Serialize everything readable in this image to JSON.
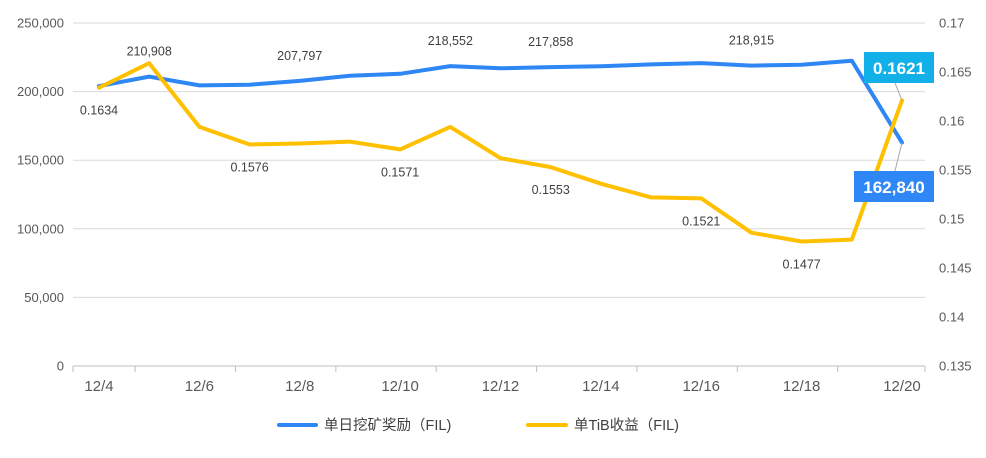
{
  "chart_data": {
    "type": "line",
    "x": [
      "12/4",
      "12/5",
      "12/6",
      "12/7",
      "12/8",
      "12/9",
      "12/10",
      "12/11",
      "12/12",
      "12/13",
      "12/14",
      "12/15",
      "12/16",
      "12/17",
      "12/18",
      "12/19",
      "12/20"
    ],
    "x_tick_labels": [
      "12/4",
      "12/6",
      "12/8",
      "12/10",
      "12/12",
      "12/14",
      "12/16",
      "12/18",
      "12/20"
    ],
    "y_left": {
      "ylim": [
        0,
        250000
      ],
      "ticks": [
        "0",
        "50,000",
        "100,000",
        "150,000",
        "200,000",
        "250,000"
      ]
    },
    "y_right": {
      "ylim": [
        0.135,
        0.17
      ],
      "ticks": [
        "0.135",
        "0.14",
        "0.145",
        "0.15",
        "0.155",
        "0.16",
        "0.165",
        "0.17"
      ]
    },
    "grid": "horizontal",
    "legend_position": "bottom",
    "series": [
      {
        "name": "单日挖矿奖励（FIL)",
        "axis": "left",
        "color": "#2f86f5",
        "values": [
          204000,
          210908,
          204500,
          205000,
          207797,
          211500,
          213000,
          218552,
          217000,
          217858,
          218500,
          219800,
          220800,
          218915,
          219500,
          222500,
          162840
        ],
        "labels": [
          null,
          "210,908",
          null,
          null,
          "207,797",
          null,
          null,
          "218,552",
          null,
          "217,858",
          null,
          null,
          null,
          "218,915",
          null,
          null,
          "162,840"
        ]
      },
      {
        "name": "单TiB收益（FIL)",
        "axis": "right",
        "color": "#ffc000",
        "values": [
          0.1634,
          0.1659,
          0.1594,
          0.1576,
          0.1577,
          0.1579,
          0.1571,
          0.1594,
          0.1562,
          0.1553,
          0.1536,
          0.1522,
          0.1521,
          0.1486,
          0.1477,
          0.1479,
          0.1621
        ],
        "labels": [
          "0.1634",
          null,
          null,
          "0.1576",
          null,
          null,
          "0.1571",
          null,
          null,
          "0.1553",
          null,
          null,
          "0.1521",
          null,
          "0.1477",
          null,
          "0.1621"
        ]
      }
    ],
    "callouts": [
      {
        "text": "0.1621",
        "color": "#12b0e8"
      },
      {
        "text": "162,840",
        "color": "#2f86f5"
      }
    ]
  }
}
